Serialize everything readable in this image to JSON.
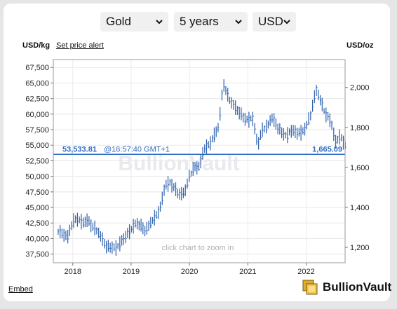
{
  "controls": {
    "metal": "Gold",
    "period": "5 years",
    "currency": "USD"
  },
  "header": {
    "left_unit": "USD/kg",
    "alert_link": "Set price alert",
    "right_unit": "USD/oz"
  },
  "footer": {
    "embed_link": "Embed",
    "brand": "BullionVault"
  },
  "chart_data": {
    "type": "line",
    "style": "high-low bars",
    "x_ticks": [
      "2018",
      "2019",
      "2020",
      "2021",
      "2022"
    ],
    "xlim": [
      "2017-09",
      "2022-09"
    ],
    "y_left": {
      "label": "USD/kg",
      "ticks": [
        "37,500",
        "40,000",
        "42,500",
        "45,000",
        "47,500",
        "50,000",
        "52,500",
        "55,000",
        "57,500",
        "60,000",
        "62,500",
        "65,000",
        "67,500"
      ],
      "range": [
        36108,
        68766
      ]
    },
    "y_right": {
      "label": "USD/oz",
      "ticks": [
        "1,200",
        "1,400",
        "1,600",
        "1,800",
        "2,000"
      ],
      "range": [
        1123,
        2139
      ]
    },
    "current": {
      "price_kg": "53,533.81",
      "time": "@16:57:40 GMT+1",
      "price_oz": "1,665.09",
      "value": 53533.81
    },
    "watermark": "BullionVault",
    "hint": "click chart to zoom in",
    "series": [
      {
        "x": [
          2017.75,
          2017.83,
          2017.92,
          2018.0,
          2018.08,
          2018.17,
          2018.25,
          2018.33,
          2018.42,
          2018.5,
          2018.58,
          2018.67,
          2018.75,
          2018.83,
          2018.92,
          2019.0,
          2019.08,
          2019.17,
          2019.25,
          2019.33,
          2019.42,
          2019.5,
          2019.58,
          2019.67,
          2019.75,
          2019.83,
          2019.92,
          2020.0,
          2020.08,
          2020.17,
          2020.25,
          2020.33,
          2020.42,
          2020.5,
          2020.58,
          2020.67,
          2020.75,
          2020.83,
          2020.92,
          2021.0,
          2021.08,
          2021.17,
          2021.25,
          2021.33,
          2021.42,
          2021.5,
          2021.58,
          2021.67,
          2021.75,
          2021.83,
          2021.92,
          2022.0,
          2022.08,
          2022.17,
          2022.25,
          2022.33,
          2022.42,
          2022.5,
          2022.58,
          2022.67
        ],
        "y": [
          41200,
          40700,
          40300,
          42800,
          43200,
          42500,
          43000,
          42000,
          41200,
          40000,
          38600,
          38600,
          38500,
          39500,
          40500,
          41500,
          42500,
          42000,
          41200,
          42500,
          43500,
          45000,
          48500,
          49000,
          48000,
          47000,
          47500,
          50000,
          51500,
          51500,
          54500,
          55000,
          56500,
          58000,
          65000,
          62500,
          61500,
          60500,
          59500,
          59000,
          59500,
          55000,
          57500,
          58000,
          59500,
          58000,
          57000,
          56500,
          57500,
          57000,
          57000,
          58000,
          60000,
          64000,
          62000,
          60000,
          59000,
          55500,
          56500,
          55000
        ]
      }
    ]
  }
}
